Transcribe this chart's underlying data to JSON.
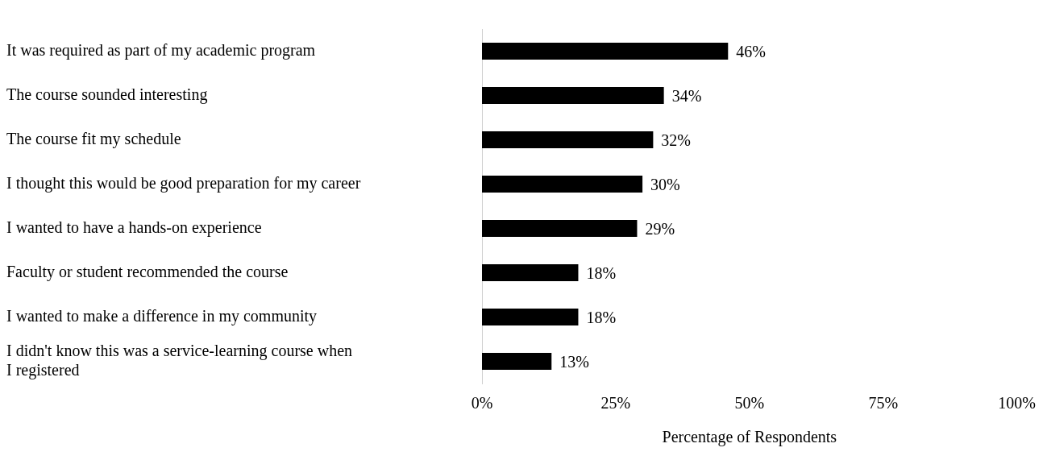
{
  "chart_data": {
    "type": "bar",
    "orientation": "horizontal",
    "xlabel": "Percentage of Respondents",
    "categories": [
      "It was required as part of my academic program",
      "The course sounded interesting",
      "The course fit my schedule",
      "I thought this would be good preparation for my career",
      "I wanted to have a hands-on experience",
      "Faculty or student recommended the course",
      "I wanted to make a difference in my community",
      "I didn't know this was a service-learning course when I registered"
    ],
    "values": [
      46,
      34,
      32,
      30,
      29,
      18,
      18,
      13
    ],
    "value_labels": [
      "46%",
      "34%",
      "32%",
      "30%",
      "29%",
      "18%",
      "18%",
      "13%"
    ],
    "color": "#000000",
    "xlim": [
      0,
      100
    ],
    "xticks": [
      {
        "value": 0,
        "label": "0%"
      },
      {
        "value": 25,
        "label": "25%"
      },
      {
        "value": 50,
        "label": "50%"
      },
      {
        "value": 75,
        "label": "75%"
      },
      {
        "value": 100,
        "label": "100%"
      }
    ],
    "grid": false,
    "legend": false
  }
}
